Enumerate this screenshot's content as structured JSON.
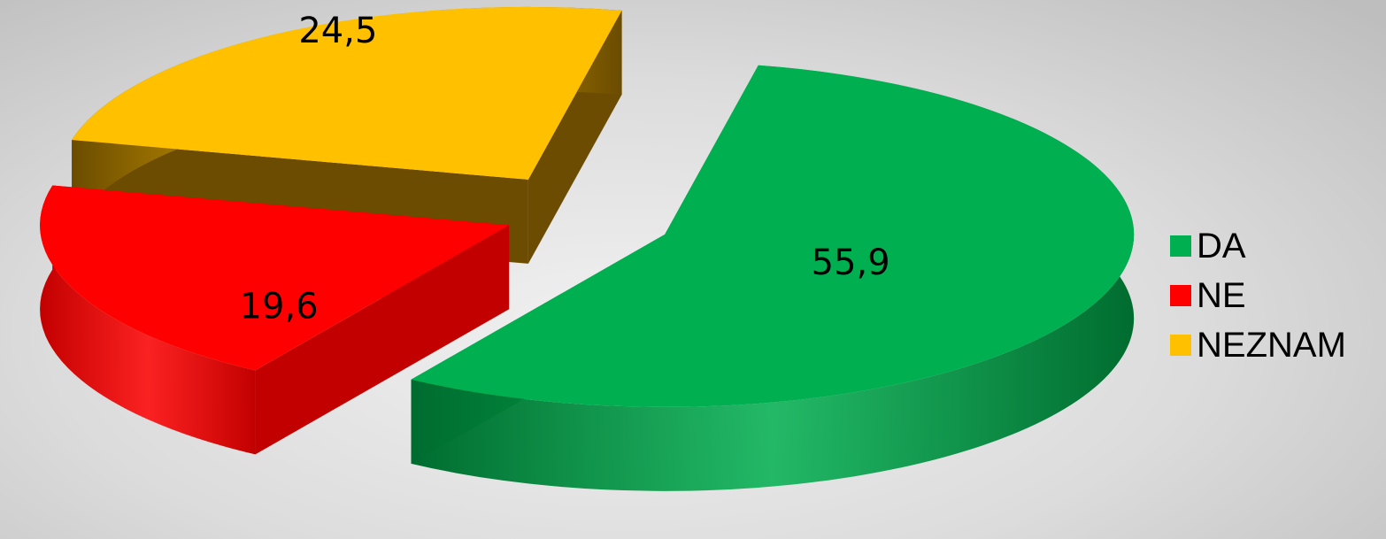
{
  "chart_data": {
    "type": "pie",
    "style": "3d-exploded",
    "categories": [
      "DA",
      "NE",
      "NEZNAM"
    ],
    "values": [
      55.9,
      19.6,
      24.5
    ],
    "labels": [
      "55,9",
      "19,6",
      "24,5"
    ],
    "colors": [
      "#00b050",
      "#ff0000",
      "#ffc000"
    ],
    "side_colors": [
      "#006c2f",
      "#c20000",
      "#6b4c00"
    ],
    "legend_position": "right",
    "title": ""
  }
}
